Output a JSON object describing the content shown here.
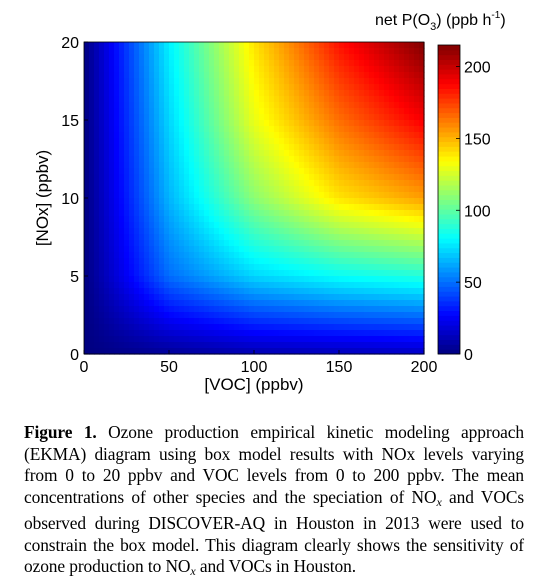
{
  "chart_data": {
    "type": "heatmap",
    "xlabel": "[VOC] (ppbv)",
    "ylabel": "[NOx] (ppbv)",
    "xlim": [
      0,
      200
    ],
    "ylim": [
      0,
      20
    ],
    "xticks": [
      0,
      50,
      100,
      150,
      200
    ],
    "yticks": [
      0,
      5,
      10,
      15,
      20
    ],
    "colorbar": {
      "label_main": "net P(O",
      "label_sub": "3",
      "label_units": ") (ppb  h",
      "label_exp": "-1",
      "label_close": ")",
      "range": [
        0,
        215
      ],
      "ticks": [
        0,
        50,
        100,
        150,
        200
      ],
      "colormap": "jet"
    },
    "z_samples": {
      "x": [
        0,
        50,
        100,
        150,
        200
      ],
      "y": [
        0,
        5,
        10,
        15,
        20
      ],
      "z": [
        [
          0,
          5,
          10,
          12,
          14
        ],
        [
          0,
          50,
          72,
          82,
          88
        ],
        [
          0,
          65,
          110,
          140,
          155
        ],
        [
          0,
          72,
          130,
          165,
          190
        ],
        [
          0,
          78,
          140,
          185,
          215
        ]
      ]
    }
  },
  "caption": {
    "label": "Figure 1.",
    "text_a": " Ozone production empirical kinetic modeling approach (EKMA) diagram using box model results with NOx levels varying from 0 to 20 ppbv and VOC levels from 0 to 200 ppbv. The mean concentrations of other species and the speciation of NO",
    "sub_a": "x",
    "text_b": " and VOCs observed during DISCOVER-AQ in Houston in 2013 were used to constrain the box model. This diagram clearly shows the sensitivity of ozone production to NO",
    "sub_b": "x",
    "text_c": " and VOCs in Houston."
  }
}
